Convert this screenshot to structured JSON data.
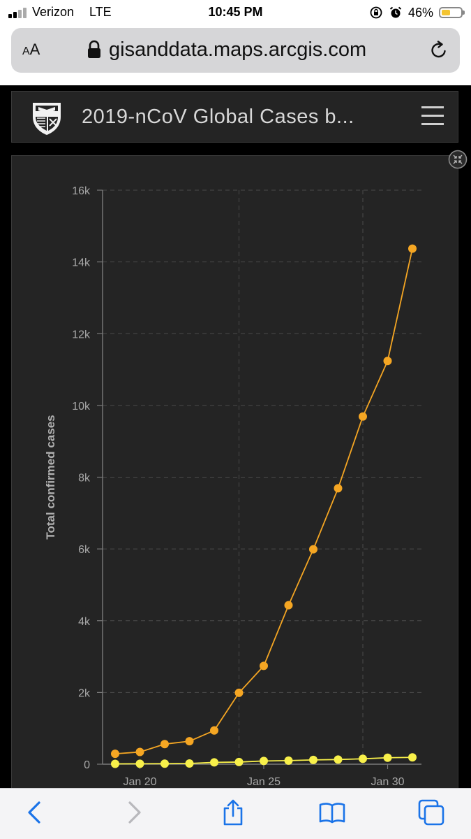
{
  "status_bar": {
    "carrier": "Verizon",
    "network": "LTE",
    "time": "10:45 PM",
    "battery_percent": "46%",
    "battery_level": 0.46,
    "signal_bars": 2,
    "icons": [
      "signal-icon",
      "orientation-lock-icon",
      "alarm-icon",
      "battery-icon"
    ]
  },
  "browser": {
    "reader_label_small": "A",
    "reader_label_large": "A",
    "url": "gisanddata.maps.arcgis.com",
    "icons": [
      "lock-icon",
      "reload-icon"
    ]
  },
  "dashboard": {
    "title": "2019-nCoV Global Cases b...",
    "icons": [
      "jhu-shield-logo",
      "hamburger-menu-icon",
      "collapse-icon"
    ]
  },
  "chart_data": {
    "type": "line",
    "ylabel": "Total confirmed cases",
    "xlabel": "",
    "x": [
      "Jan 19",
      "Jan 20",
      "Jan 21",
      "Jan 22",
      "Jan 23",
      "Jan 24",
      "Jan 25",
      "Jan 26",
      "Jan 27",
      "Jan 28",
      "Jan 29",
      "Jan 30",
      "Jan 31"
    ],
    "x_tick_labels": [
      "Jan 20",
      "Jan 25",
      "Jan 30"
    ],
    "ylim": [
      0,
      16000
    ],
    "y_ticks": [
      0,
      2000,
      4000,
      6000,
      8000,
      10000,
      12000,
      14000,
      16000
    ],
    "y_tick_labels": [
      "0",
      "2k",
      "4k",
      "6k",
      "8k",
      "10k",
      "12k",
      "14k",
      "16k"
    ],
    "grid": true,
    "series": [
      {
        "color": "#f5a623",
        "values": [
          290,
          340,
          560,
          640,
          940,
          1990,
          2740,
          4430,
          5990,
          7690,
          9690,
          11240,
          14370
        ]
      },
      {
        "color": "#f8f04a",
        "values": [
          10,
          12,
          15,
          20,
          50,
          60,
          90,
          100,
          120,
          130,
          150,
          180,
          190
        ]
      }
    ]
  },
  "toolbar": {
    "icons": [
      "back-icon",
      "forward-icon",
      "share-icon",
      "bookmarks-icon",
      "tabs-icon"
    ]
  }
}
